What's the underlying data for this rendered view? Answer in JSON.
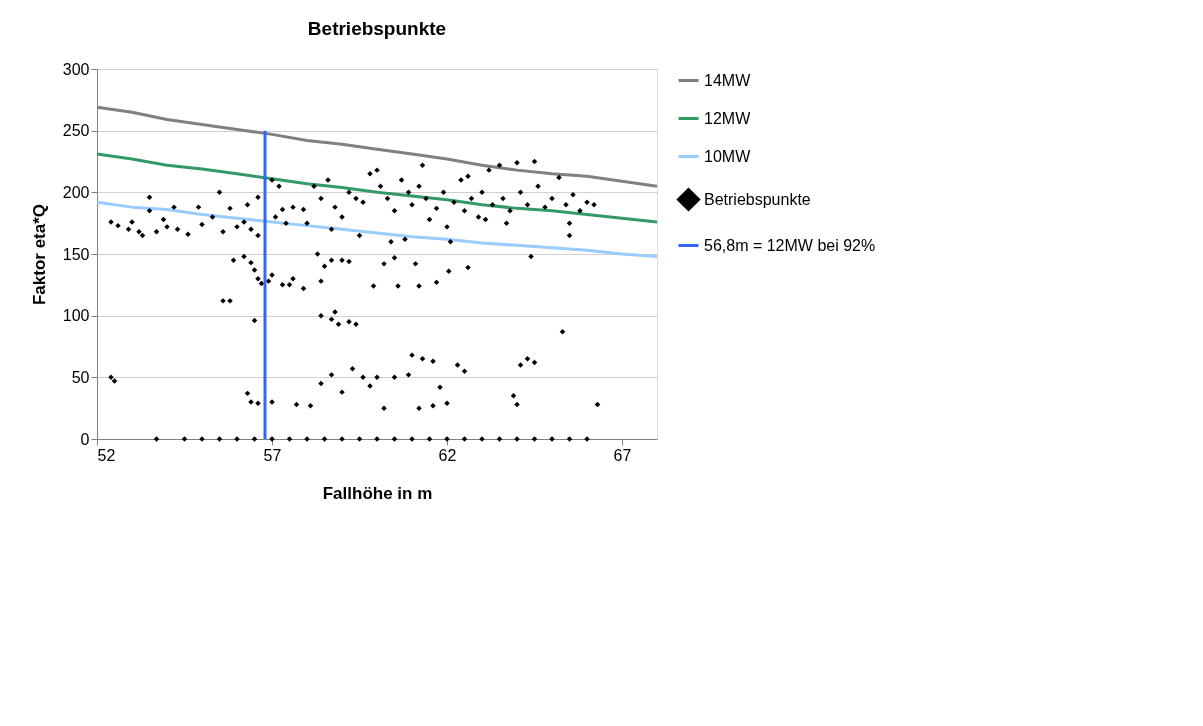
{
  "chart_data": {
    "type": "scatter",
    "title": "Betriebspunkte",
    "xlabel": "Fallhöhe in m",
    "ylabel": "Faktor eta*Q",
    "xlim": [
      52,
      68
    ],
    "xticks": [
      52,
      57,
      62,
      67
    ],
    "ylim": [
      0,
      300
    ],
    "yticks": [
      0,
      50,
      100,
      150,
      200,
      250,
      300
    ],
    "grid": "y",
    "legend": "right",
    "series": [
      {
        "name": "14MW",
        "type": "line",
        "color": "#808080",
        "marker": "none",
        "x": [
          52,
          53,
          54,
          55,
          56,
          57,
          58,
          59,
          60,
          61,
          62,
          63,
          64,
          65,
          66,
          67,
          68
        ],
        "values": [
          269,
          265,
          259,
          255,
          251,
          247,
          242,
          239,
          235,
          231,
          227,
          222,
          218,
          215,
          213,
          209,
          205
        ]
      },
      {
        "name": "12MW",
        "type": "line",
        "color": "#339966",
        "marker": "none",
        "x": [
          52,
          53,
          54,
          55,
          56,
          57,
          58,
          59,
          60,
          61,
          62,
          63,
          64,
          65,
          66,
          67,
          68
        ],
        "values": [
          231,
          227,
          222,
          219,
          215,
          211,
          207,
          204,
          200,
          197,
          194,
          190,
          187,
          185,
          182,
          179,
          176
        ]
      },
      {
        "name": "10MW",
        "type": "line",
        "color": "#99ccff",
        "marker": "none",
        "x": [
          52,
          53,
          54,
          55,
          56,
          57,
          58,
          59,
          60,
          61,
          62,
          63,
          64,
          65,
          66,
          67,
          68
        ],
        "values": [
          192,
          188,
          186,
          182,
          179,
          176,
          173,
          170,
          167,
          164,
          162,
          159,
          157,
          155,
          153,
          150,
          148
        ]
      },
      {
        "name": "Betriebspunkte",
        "color": "#000000",
        "marker": "diamond",
        "x": [
          52.4,
          52.6,
          52.9,
          53.0,
          53.2,
          53.5,
          53.5,
          53.7,
          53.9,
          54.2,
          54.3,
          54.6,
          54.9,
          55.0,
          55.3,
          55.6,
          55.8,
          56.0,
          56.2,
          56.4,
          56.6,
          56.6,
          54.0,
          55.5,
          53.3,
          56.3,
          52.4,
          52.5,
          53.7,
          56.6,
          56.7,
          57.0,
          56.9,
          56.5,
          56.4,
          55.9,
          56.2,
          55.6,
          55.8,
          56.5,
          56.3,
          56.4,
          56.6,
          57.0,
          57.3,
          57.5,
          57.6,
          57.9,
          58.3,
          58.4,
          58.5,
          58.7,
          59.0,
          59.2,
          58.7,
          58.9,
          59.2,
          59.4,
          58.4,
          58.8,
          57.7,
          58.1,
          58.4,
          58.7,
          59.0,
          59.3,
          59.6,
          59.8,
          60.0,
          60.2,
          60.5,
          60.9,
          61.0,
          61.3,
          61.6,
          61.2,
          61.6,
          62.0,
          62.3,
          62.5,
          61.8,
          63.9,
          64.1,
          64.3,
          64.0,
          65.3,
          66.3,
          64.5,
          64.4,
          60.5,
          60.2,
          61.1,
          62.05,
          62.6,
          61.7,
          61.2,
          59.9,
          60.6,
          57.0,
          57.2,
          57.3,
          57.6,
          57.9,
          58.2,
          58.4,
          58.6,
          58.8,
          59.0,
          59.2,
          59.4,
          59.6,
          59.8,
          60.0,
          60.1,
          60.3,
          60.5,
          60.7,
          60.9,
          61.0,
          61.2,
          61.4,
          61.5,
          61.7,
          61.9,
          62.0,
          62.1,
          62.2,
          62.4,
          62.5,
          62.7,
          62.9,
          63.0,
          63.2,
          63.3,
          63.5,
          63.6,
          63.8,
          64.0,
          64.1,
          64.3,
          64.5,
          64.6,
          64.8,
          65.0,
          65.2,
          65.4,
          65.6,
          65.8,
          66.0,
          66.2,
          65.5,
          65.5,
          57.4,
          57.1,
          58.0,
          59.5,
          60.4,
          60.8,
          58.7,
          63.1,
          63.7,
          61.3,
          62.6,
          54.5,
          55.0,
          55.5,
          56.0,
          56.5,
          57.0,
          57.5,
          58.0,
          58.5,
          59.0,
          59.5,
          60.0,
          60.5,
          61.0,
          61.5,
          62.0,
          62.5,
          63.0,
          63.5,
          64.0,
          64.5,
          65.0,
          65.5,
          66.0
        ],
        "values": [
          176,
          173,
          170,
          176,
          168,
          196,
          185,
          168,
          178,
          188,
          170,
          166,
          188,
          174,
          180,
          168,
          187,
          172,
          176,
          170,
          165,
          196,
          172,
          200,
          165,
          190,
          50,
          47,
          0,
          130,
          126,
          133,
          128,
          137,
          143,
          145,
          148,
          112,
          112,
          96,
          37,
          30,
          29,
          30,
          125,
          125,
          130,
          122,
          150,
          128,
          140,
          145,
          145,
          144,
          97,
          93,
          95,
          93,
          100,
          103,
          28,
          27,
          45,
          52,
          38,
          57,
          50,
          43,
          50,
          25,
          50,
          52,
          68,
          65,
          63,
          25,
          27,
          29,
          60,
          55,
          42,
          35,
          60,
          65,
          28,
          87,
          28,
          62,
          148,
          147,
          142,
          142,
          136,
          139,
          127,
          124,
          124,
          124,
          210,
          205,
          186,
          188,
          186,
          205,
          195,
          210,
          188,
          180,
          200,
          195,
          192,
          215,
          218,
          205,
          195,
          185,
          210,
          200,
          190,
          205,
          195,
          178,
          187,
          200,
          172,
          160,
          192,
          210,
          185,
          195,
          180,
          200,
          218,
          190,
          222,
          195,
          185,
          224,
          200,
          190,
          225,
          205,
          188,
          195,
          212,
          190,
          198,
          185,
          192,
          190,
          175,
          165,
          175,
          180,
          175,
          165,
          160,
          162,
          170,
          178,
          175,
          222,
          213,
          0,
          0,
          0,
          0,
          0,
          0,
          0,
          0,
          0,
          0,
          0,
          0,
          0,
          0,
          0,
          0,
          0,
          0,
          0,
          0,
          0,
          0,
          0,
          0
        ]
      },
      {
        "name": "56,8m = 12MW bei 92%",
        "type": "line",
        "color": "#3366ff",
        "marker": "none",
        "x": [
          56.8,
          56.8
        ],
        "values": [
          0,
          250
        ]
      }
    ]
  }
}
